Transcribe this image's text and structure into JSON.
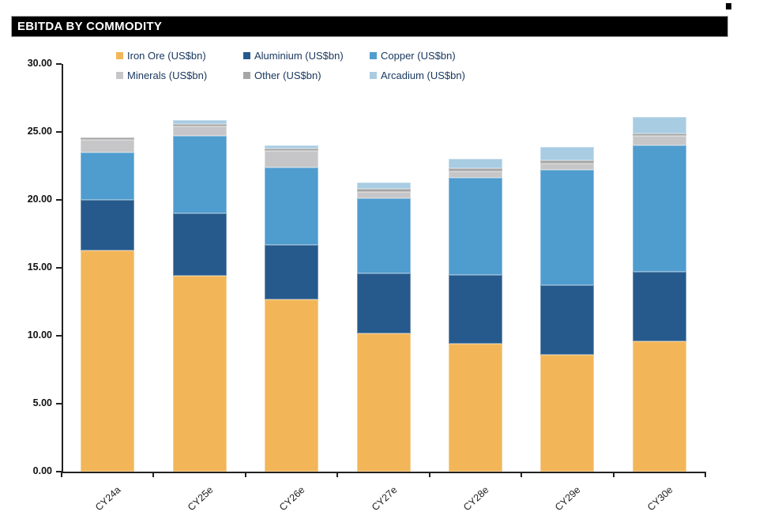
{
  "header": {
    "title": "EBITDA BY COMMODITY"
  },
  "corner_mark": {
    "color": "#000000"
  },
  "chart_data": {
    "type": "bar",
    "stacked": true,
    "title": "EBITDA BY COMMODITY",
    "xlabel": "",
    "ylabel": "",
    "ylim": [
      0,
      30
    ],
    "ytick_step": 5,
    "ytick_labels": [
      "0.00",
      "5.00",
      "10.00",
      "15.00",
      "20.00",
      "25.00",
      "30.00"
    ],
    "grid": false,
    "legend_position": "top",
    "categories": [
      "CY24a",
      "CY25e",
      "CY26e",
      "CY27e",
      "CY28e",
      "CY29e",
      "CY30e"
    ],
    "series": [
      {
        "name": "Iron Ore (US$bn)",
        "color": "#F2B659",
        "values": [
          16.3,
          14.4,
          12.7,
          10.2,
          9.4,
          8.6,
          9.6
        ]
      },
      {
        "name": "Aluminium (US$bn)",
        "color": "#265A8C",
        "values": [
          3.7,
          4.6,
          4.0,
          4.4,
          5.1,
          5.1,
          5.1
        ]
      },
      {
        "name": "Copper (US$bn)",
        "color": "#4F9CCE",
        "values": [
          3.5,
          5.7,
          5.7,
          5.5,
          7.1,
          8.5,
          9.3
        ]
      },
      {
        "name": "Minerals (US$bn)",
        "color": "#C6C6C8",
        "values": [
          0.9,
          0.7,
          1.2,
          0.5,
          0.5,
          0.5,
          0.7
        ]
      },
      {
        "name": "Other (US$bn)",
        "color": "#A6A6A6",
        "values": [
          0.2,
          0.2,
          0.2,
          0.2,
          0.2,
          0.2,
          0.2
        ]
      },
      {
        "name": "Arcadium (US$bn)",
        "color": "#A8CCE2",
        "values": [
          0.0,
          0.3,
          0.2,
          0.5,
          0.7,
          1.0,
          1.2
        ]
      }
    ]
  }
}
